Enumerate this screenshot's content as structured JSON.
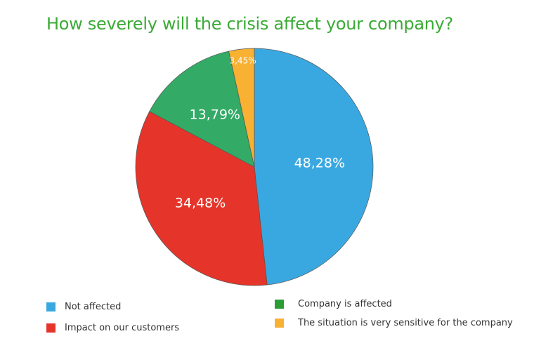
{
  "chart_data": {
    "type": "pie",
    "title": "How severely will the crisis affect your company?",
    "start": "top",
    "direction": "clockwise",
    "slices": [
      {
        "label": "Not affected",
        "value": 48.28,
        "display": "48,28%",
        "color": "#3aa8e0"
      },
      {
        "label": "Impact on our customers",
        "value": 34.48,
        "display": "34,48%",
        "color": "#e5342a"
      },
      {
        "label": "Company is affected",
        "value": 13.79,
        "display": "13,79%",
        "color": "#33aa66",
        "legend_color": "#2a9d34"
      },
      {
        "label": "The situation is very sensitive for the company",
        "value": 3.45,
        "display": "3,45%",
        "color": "#f8b133"
      }
    ],
    "legend_placement": "bottom"
  }
}
